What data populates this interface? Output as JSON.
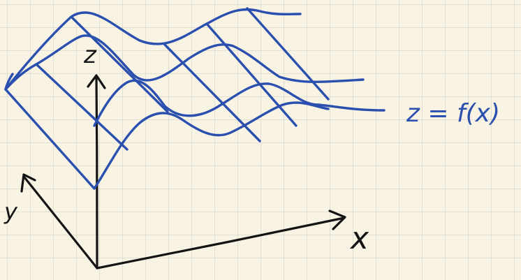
{
  "labels": {
    "z_axis": "z",
    "y_axis": "y",
    "x_axis": "x",
    "equation": "z = f(x)"
  },
  "colors": {
    "paper": "#f8f3e3",
    "grid": "#cfd1c9",
    "ink_black": "#141414",
    "ink_blue": "#2b4fae"
  }
}
